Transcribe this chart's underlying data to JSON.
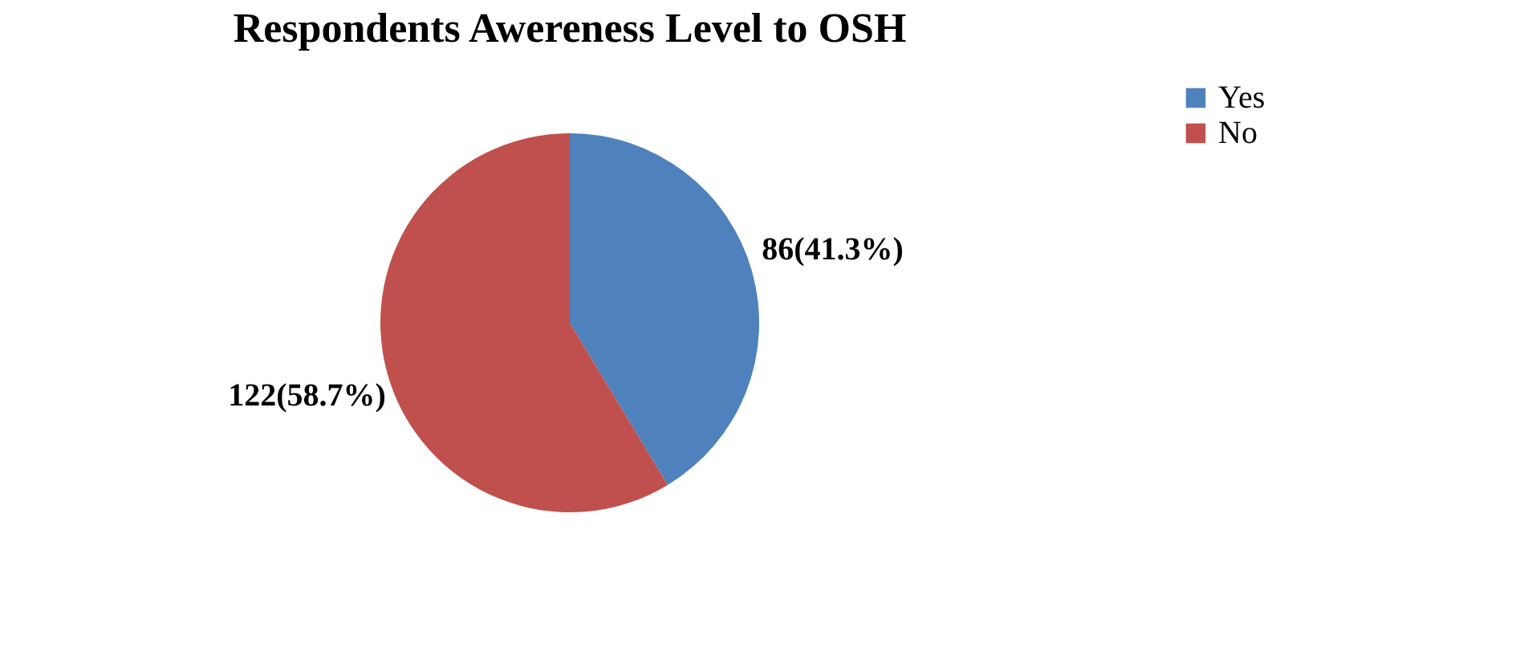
{
  "chart_data": {
    "type": "pie",
    "title": "Respondents Awereness Level to OSH",
    "categories": [
      "Yes",
      "No"
    ],
    "values": [
      86,
      122
    ],
    "colors": [
      "#4f81bd",
      "#c0504d"
    ],
    "value_labels": [
      "86(41.3%)",
      "122(58.7%)"
    ],
    "legend": "right"
  }
}
